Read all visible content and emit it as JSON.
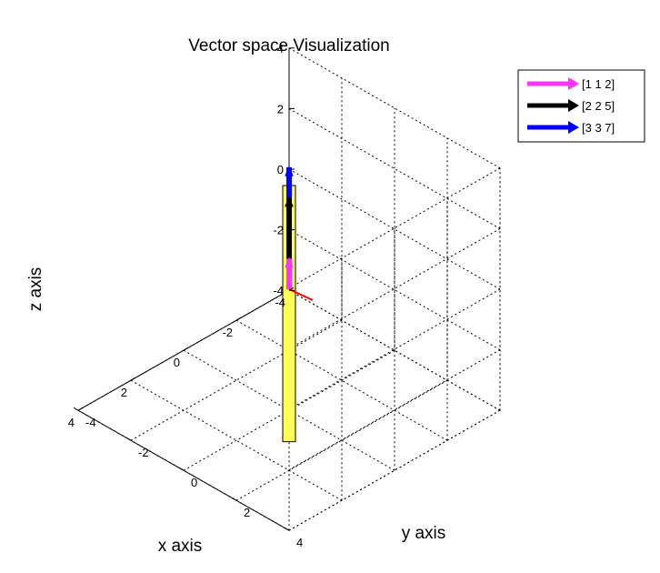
{
  "chart_data": {
    "type": "3d-vector",
    "title": "Vector space Visualization",
    "xlabel": "x axis",
    "ylabel": "y axis",
    "zlabel": "z axis",
    "xlim": [
      -4,
      4
    ],
    "ylim": [
      -4,
      4
    ],
    "zlim": [
      -4,
      4
    ],
    "x_ticks": [
      "-4",
      "-2",
      "0",
      "2",
      "4"
    ],
    "y_ticks": [
      "-4",
      "-2",
      "0",
      "2",
      "4"
    ],
    "z_ticks": [
      "-4",
      "-2",
      "0",
      "2",
      "4"
    ],
    "grid": true,
    "legend_position": "top-right",
    "series": [
      {
        "name": "[1 1 2]",
        "values": [
          1,
          1,
          2
        ],
        "color": "#ff33ff"
      },
      {
        "name": "[2 2 5]",
        "values": [
          2,
          2,
          5
        ],
        "color": "#000000"
      },
      {
        "name": "[3 3 7]",
        "values": [
          3,
          3,
          7
        ],
        "color": "#0000ff"
      }
    ],
    "surface_color": "#ffff55",
    "surface_edge_color": "#000000"
  }
}
